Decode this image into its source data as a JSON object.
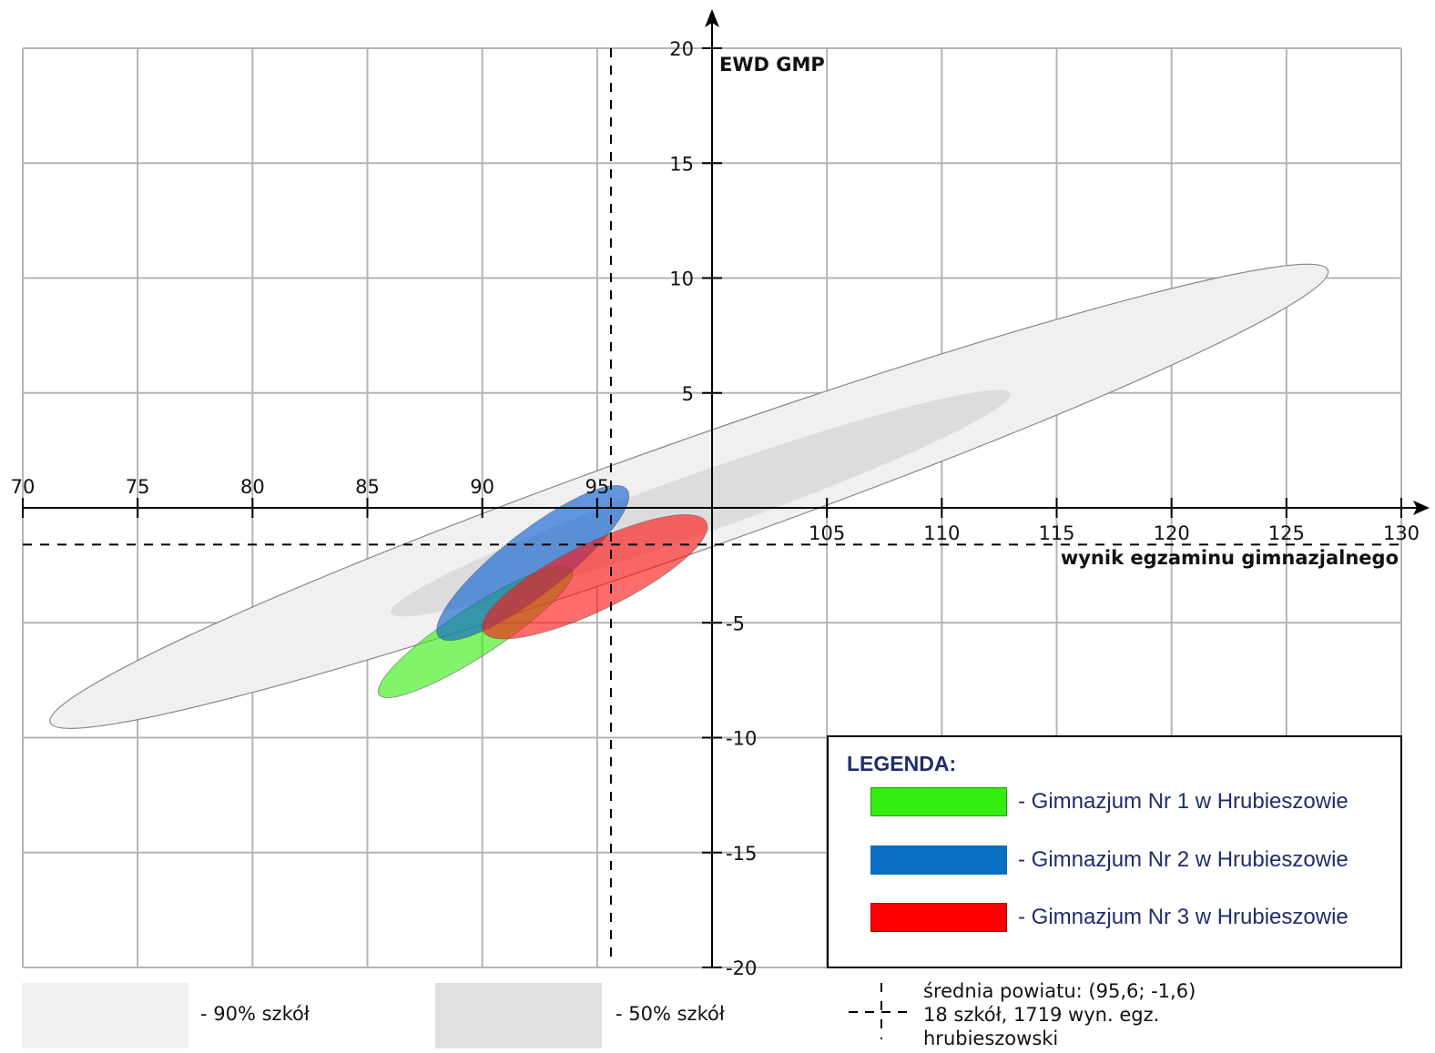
{
  "chart_data": {
    "type": "scatter",
    "xlabel": "wynik egzaminu gimnazjalnego",
    "ylabel": "EWD GMP",
    "xlim": [
      70,
      130
    ],
    "ylim": [
      -20,
      20
    ],
    "x_ticks": [
      70,
      75,
      80,
      85,
      90,
      95,
      100,
      105,
      110,
      115,
      120,
      125,
      130
    ],
    "x_tick_labels": [
      "70",
      "75",
      "80",
      "85",
      "90",
      "95",
      "",
      "105",
      "110",
      "115",
      "120",
      "125",
      "130"
    ],
    "y_ticks": [
      -20,
      -15,
      -10,
      -5,
      0,
      5,
      10,
      15,
      20
    ],
    "y_tick_labels": [
      "-20",
      "-15",
      "-10",
      "-5",
      "",
      "5",
      "10",
      "15",
      "20"
    ],
    "grid": true,
    "reference_lines": {
      "mean_x": 95.6,
      "mean_y": -1.6
    },
    "bands": [
      {
        "name": "90% szkół",
        "label": "- 90% szkół",
        "cx": 99.0,
        "cy": 0.5,
        "rx": 29.5,
        "ry": 2.4,
        "angle_deg": 19.5,
        "fill": "#f0f0f0",
        "stroke": "#888888"
      },
      {
        "name": "50% szkół",
        "label": "- 50% szkół",
        "cx": 99.5,
        "cy": 0.2,
        "rx": 14.3,
        "ry": 1.3,
        "angle_deg": 19.5,
        "fill": "#dcdcdc",
        "stroke": "none"
      }
    ],
    "series": [
      {
        "name": "Gimnazjum Nr 1 w Hrubieszowie",
        "cx": 89.7,
        "cy": -5.4,
        "rx": 5.0,
        "ry": 1.05,
        "angle_deg": 33,
        "color": "#33ee10"
      },
      {
        "name": "Gimnazjum Nr 2 w Hrubieszowie",
        "cx": 92.2,
        "cy": -2.4,
        "rx": 5.2,
        "ry": 1.35,
        "angle_deg": 38,
        "color": "#0b5fd0"
      },
      {
        "name": "Gimnazjum Nr 3 w Hrubieszowie",
        "cx": 94.9,
        "cy": -3.0,
        "rx": 5.4,
        "ry": 1.45,
        "angle_deg": 26,
        "color": "#ff1111"
      }
    ],
    "legend": {
      "title": "LEGENDA:",
      "position": "bottom-right"
    },
    "mean_note": [
      "średnia powiatu: (95,6; -1,6)",
      "18 szkół, 1719 wyn. egz.",
      "hrubieszowski"
    ]
  }
}
